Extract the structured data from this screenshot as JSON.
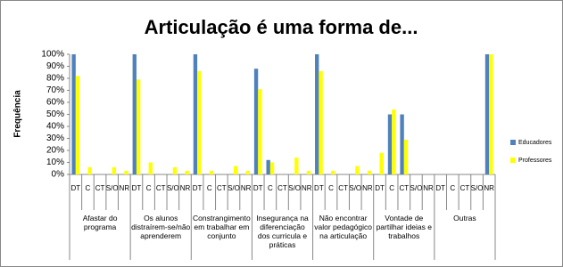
{
  "chart_data": {
    "type": "bar",
    "title": "Articulação é uma forma de...",
    "y_label": "Frequência",
    "categories": [
      "DT",
      "C",
      "CT",
      "S/O",
      "NR",
      "DT",
      "C",
      "CT",
      "S/O",
      "NR",
      "DT",
      "C",
      "CT",
      "S/O",
      "NR",
      "DT",
      "C",
      "CT",
      "S/O",
      "NR",
      "DT",
      "C",
      "CT",
      "S/O",
      "NR",
      "DT",
      "C",
      "CT",
      "S/O",
      "NR",
      "DT",
      "C",
      "CT",
      "S/O",
      "NR"
    ],
    "groups": [
      "Afastar do programa",
      "Os alunos distraírem-se/não aprenderem",
      "Constrangimento em trabalhar em conjunto",
      "Insegurança na diferenciação dos curricula e práticas",
      "Não encontrar valor pedagógico na articulação",
      "Vontade de partilhar ideias e trabalhos",
      "Outras"
    ],
    "series": [
      {
        "name": "Educadores",
        "color": "#4f81bd",
        "values": [
          100,
          0,
          0,
          0,
          0,
          100,
          0,
          0,
          0,
          0,
          100,
          0,
          0,
          0,
          0,
          88,
          12,
          0,
          0,
          0,
          100,
          0,
          0,
          0,
          0,
          0,
          50,
          50,
          0,
          0,
          0,
          0,
          0,
          0,
          100
        ]
      },
      {
        "name": "Professores",
        "color": "#ffff00",
        "values": [
          82,
          6,
          0,
          6,
          3,
          79,
          10,
          0,
          6,
          3,
          86,
          3,
          0,
          7,
          3,
          71,
          10,
          0,
          14,
          3,
          86,
          3,
          0,
          7,
          3,
          18,
          54,
          29,
          0,
          0,
          0,
          0,
          0,
          0,
          100
        ]
      }
    ],
    "ylim": [
      0,
      100
    ],
    "yticks": [
      {
        "value": 0,
        "label": "0%"
      },
      {
        "value": 10,
        "label": "10%"
      },
      {
        "value": 20,
        "label": "20%"
      },
      {
        "value": 30,
        "label": "30%"
      },
      {
        "value": 40,
        "label": "40%"
      },
      {
        "value": 50,
        "label": "50%"
      },
      {
        "value": 60,
        "label": "60%"
      },
      {
        "value": 70,
        "label": "70%"
      },
      {
        "value": 80,
        "label": "80%"
      },
      {
        "value": 90,
        "label": "90%"
      },
      {
        "value": 100,
        "label": "100%"
      }
    ],
    "legend": "right"
  }
}
